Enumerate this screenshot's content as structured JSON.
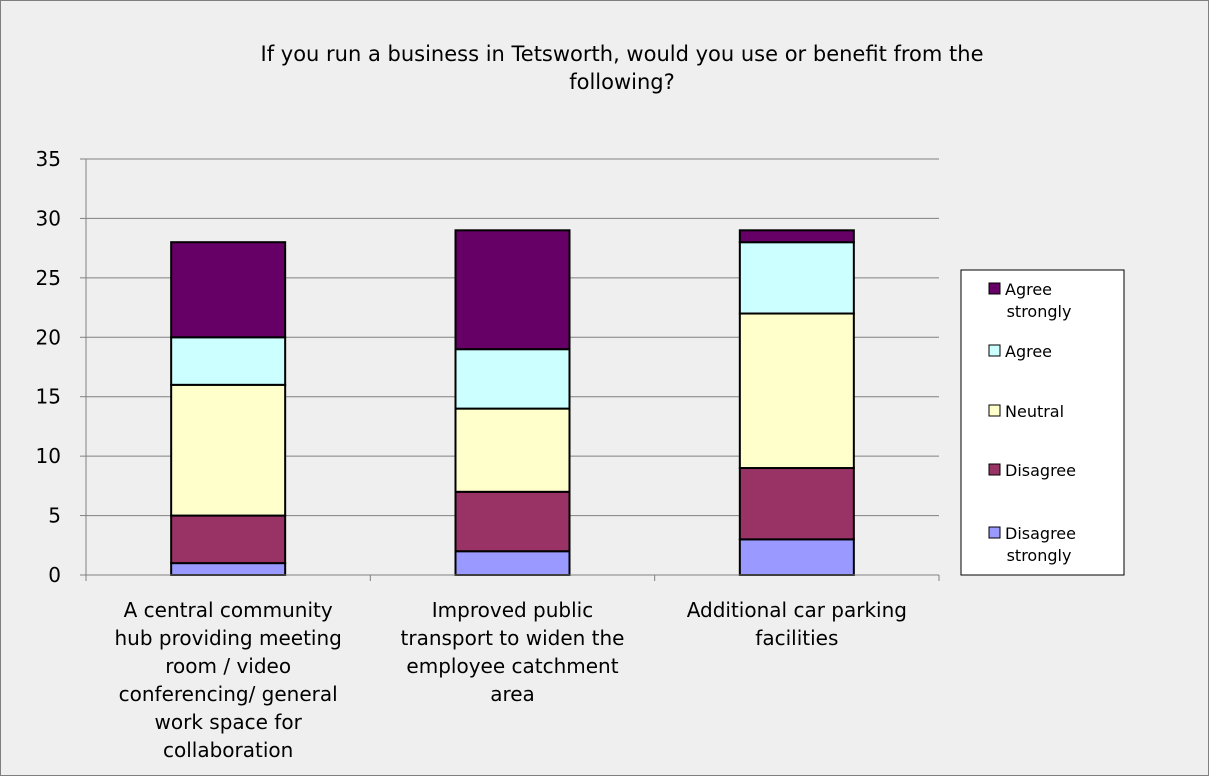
{
  "chart_data": {
    "type": "bar",
    "stacked": true,
    "title_lines": [
      "If you run a business in Tetsworth, would you use or benefit from the",
      "following?"
    ],
    "categories": [
      [
        "A central community",
        "hub providing meeting",
        "room / video",
        "conferencing/ general",
        "work space for",
        "collaboration"
      ],
      [
        "Improved public",
        "transport to widen the",
        "employee catchment",
        "area"
      ],
      [
        "Additional car parking",
        "facilities"
      ]
    ],
    "series": [
      {
        "name": [
          "Disagree",
          "strongly"
        ],
        "color": "#9999ff",
        "values": [
          1,
          2,
          3
        ]
      },
      {
        "name": [
          "Disagree"
        ],
        "color": "#993366",
        "values": [
          4,
          5,
          6
        ]
      },
      {
        "name": [
          "Neutral"
        ],
        "color": "#ffffcc",
        "values": [
          11,
          7,
          13
        ]
      },
      {
        "name": [
          "Agree"
        ],
        "color": "#ccffff",
        "values": [
          4,
          5,
          6
        ]
      },
      {
        "name": [
          "Agree",
          "strongly"
        ],
        "color": "#660066",
        "values": [
          8,
          10,
          1
        ]
      }
    ],
    "ylim": [
      0,
      35
    ],
    "yticks": [
      0,
      5,
      10,
      15,
      20,
      25,
      30,
      35
    ],
    "grid": true,
    "legend_position": "right"
  }
}
